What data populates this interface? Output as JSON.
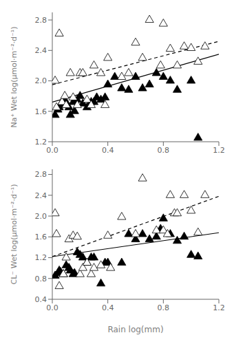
{
  "chart_data": [
    {
      "type": "scatter",
      "ylabel": "Na⁺ Wet log(μmol·m⁻²·d⁻¹)",
      "xlim": [
        0.0,
        1.2
      ],
      "xticks": [
        {
          "value": 0.0,
          "label": "0.0"
        },
        0.4,
        0.8,
        1.2
      ],
      "ylim": [
        1.2,
        2.9
      ],
      "yticks": [
        1.2,
        1.6,
        {
          "value": 2.0,
          "label": "2.0"
        },
        2.4,
        2.8
      ],
      "grid": false,
      "series": [
        {
          "type": "line",
          "color": "#000000",
          "line_style": "solid",
          "x": [
            0.0,
            1.2
          ],
          "values": [
            1.72,
            2.35
          ]
        },
        {
          "type": "line",
          "color": "#000000",
          "line_style": "dashed",
          "x": [
            0.0,
            1.2
          ],
          "values": [
            1.95,
            2.52
          ]
        },
        {
          "type": "scatter",
          "color": "#000000",
          "marker": "triangle",
          "x": [
            0.02,
            0.04,
            0.05,
            0.07,
            0.08,
            0.09,
            0.1,
            0.12,
            0.13,
            0.15,
            0.16,
            0.18,
            0.2,
            0.22,
            0.25,
            0.28,
            0.3,
            0.32,
            0.35,
            0.38,
            0.4,
            0.45,
            0.5,
            0.55,
            0.6,
            0.65,
            0.7,
            0.75,
            0.8,
            0.85,
            0.9,
            1.0,
            1.05
          ],
          "values": [
            1.55,
            1.62,
            1.65,
            1.72,
            1.68,
            1.75,
            1.7,
            1.65,
            1.55,
            1.72,
            1.6,
            1.75,
            1.8,
            1.7,
            1.65,
            1.72,
            1.72,
            1.78,
            1.75,
            1.78,
            1.95,
            2.05,
            1.9,
            1.88,
            2.05,
            1.9,
            1.95,
            2.1,
            2.05,
            2.0,
            1.88,
            2.0,
            1.25
          ]
        },
        {
          "type": "scatter",
          "color": "#000000",
          "marker": "open_triangle",
          "x": [
            0.02,
            0.03,
            0.05,
            0.07,
            0.09,
            0.1,
            0.13,
            0.15,
            0.18,
            0.2,
            0.22,
            0.25,
            0.28,
            0.3,
            0.35,
            0.38,
            0.4,
            0.5,
            0.55,
            0.6,
            0.65,
            0.7,
            0.78,
            0.8,
            0.85,
            0.9,
            0.95,
            1.0,
            1.05,
            1.1
          ],
          "values": [
            2.0,
            1.65,
            2.62,
            1.72,
            1.8,
            1.68,
            2.1,
            1.78,
            1.68,
            2.1,
            2.1,
            1.75,
            1.68,
            2.2,
            2.1,
            1.68,
            2.3,
            2.05,
            2.1,
            2.5,
            2.3,
            2.8,
            2.2,
            2.75,
            2.42,
            2.2,
            2.45,
            2.43,
            2.25,
            2.45
          ]
        }
      ]
    },
    {
      "type": "scatter",
      "ylabel": "CL⁻ Wet log(μmol·m⁻²·d⁻¹)",
      "xlabel": "Rain log(mm)",
      "xlim": [
        0.0,
        1.2
      ],
      "xticks": [
        {
          "value": 0.0,
          "label": "0.0"
        },
        0.4,
        0.8,
        1.2
      ],
      "ylim": [
        0.4,
        2.9
      ],
      "yticks": [
        0.4,
        0.8,
        1.2,
        1.6,
        {
          "value": 2.0,
          "label": "2.0"
        },
        2.4,
        2.8
      ],
      "grid": false,
      "series": [
        {
          "type": "line",
          "color": "#000000",
          "line_style": "solid",
          "x": [
            0.0,
            1.2
          ],
          "values": [
            1.22,
            1.68
          ]
        },
        {
          "type": "line",
          "color": "#000000",
          "line_style": "dashed",
          "x": [
            0.0,
            1.2
          ],
          "values": [
            1.22,
            2.38
          ]
        },
        {
          "type": "scatter",
          "color": "#000000",
          "marker": "triangle",
          "x": [
            0.02,
            0.04,
            0.05,
            0.06,
            0.08,
            0.1,
            0.12,
            0.13,
            0.15,
            0.16,
            0.18,
            0.2,
            0.22,
            0.25,
            0.28,
            0.3,
            0.35,
            0.38,
            0.4,
            0.5,
            0.55,
            0.6,
            0.65,
            0.7,
            0.75,
            0.78,
            0.8,
            0.85,
            0.9,
            0.95,
            1.0,
            1.05
          ],
          "values": [
            0.85,
            0.9,
            0.95,
            0.92,
            0.88,
            1.05,
            1.0,
            0.95,
            0.88,
            0.9,
            1.3,
            1.25,
            1.2,
            1.1,
            1.2,
            1.2,
            0.7,
            1.1,
            1.1,
            1.1,
            1.65,
            1.55,
            1.65,
            1.55,
            1.6,
            1.75,
            1.95,
            1.65,
            1.52,
            1.6,
            1.25,
            1.22
          ]
        },
        {
          "type": "scatter",
          "color": "#000000",
          "marker": "open_triangle",
          "x": [
            0.02,
            0.03,
            0.05,
            0.08,
            0.1,
            0.12,
            0.15,
            0.18,
            0.2,
            0.22,
            0.25,
            0.28,
            0.3,
            0.35,
            0.4,
            0.42,
            0.5,
            0.6,
            0.65,
            0.75,
            0.8,
            0.83,
            0.85,
            0.88,
            0.9,
            0.95,
            1.0,
            1.05,
            1.1
          ],
          "values": [
            2.05,
            1.65,
            0.65,
            0.88,
            1.2,
            1.55,
            1.62,
            1.6,
            0.88,
            1.0,
            1.1,
            0.88,
            1.0,
            1.05,
            1.62,
            1.0,
            1.98,
            1.65,
            2.72,
            1.72,
            1.72,
            1.65,
            2.4,
            2.05,
            2.05,
            2.4,
            2.1,
            1.68,
            2.4
          ]
        }
      ]
    }
  ]
}
